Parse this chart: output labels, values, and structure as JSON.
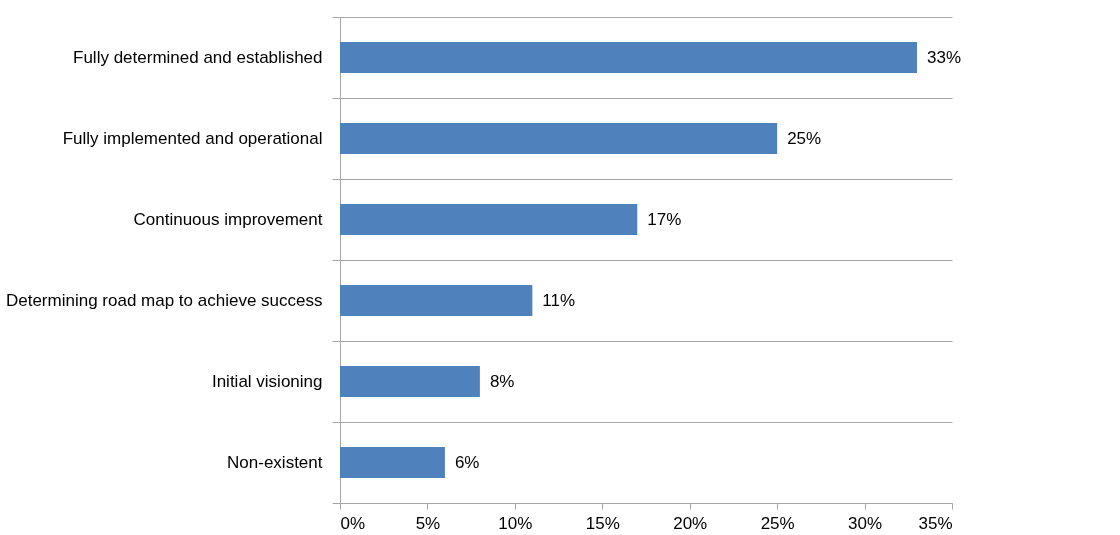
{
  "chart_data": {
    "type": "bar",
    "orientation": "horizontal",
    "categories": [
      "Fully determined and established",
      "Fully implemented and operational",
      "Continuous improvement",
      "Determining road map to achieve success",
      "Initial visioning",
      "Non-existent"
    ],
    "values": [
      33,
      25,
      17,
      11,
      8,
      6
    ],
    "value_labels": [
      "33%",
      "25%",
      "17%",
      "11%",
      "8%",
      "6%"
    ],
    "color": "#4f81bd",
    "xlim": [
      0,
      35
    ],
    "xticks": [
      {
        "value": 0,
        "label": "0%"
      },
      {
        "value": 5,
        "label": "5%"
      },
      {
        "value": 10,
        "label": "10%"
      },
      {
        "value": 15,
        "label": "15%"
      },
      {
        "value": 20,
        "label": "20%"
      },
      {
        "value": 25,
        "label": "25%"
      },
      {
        "value": 30,
        "label": "30%"
      },
      {
        "value": 35,
        "label": "35%"
      }
    ],
    "grid": "y"
  }
}
